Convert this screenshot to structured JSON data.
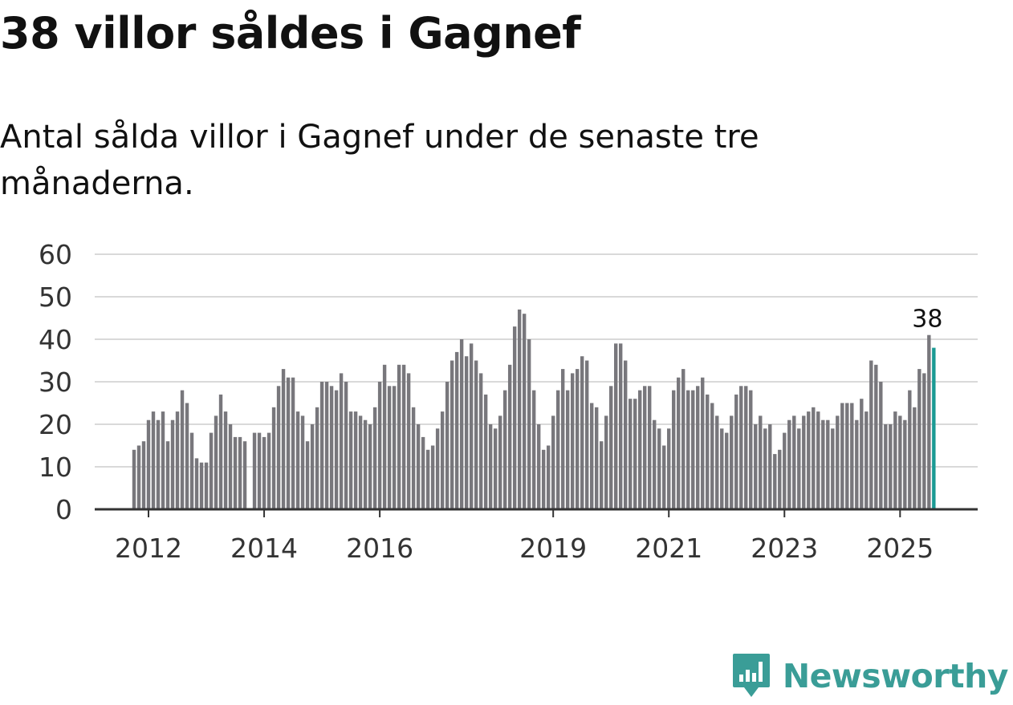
{
  "header": {
    "title": "38 villor såldes i Gagnef",
    "subtitle": "Antal sålda villor i Gagnef under de senaste tre månaderna."
  },
  "brand": {
    "name": "Newsworthy",
    "color": "#3a9d97"
  },
  "colors": {
    "bar": "#78777c",
    "highlight": "#1a9a94",
    "grid": "#d9d9d9",
    "axis": "#333333"
  },
  "chart_data": {
    "type": "bar",
    "title": "",
    "xlabel": "",
    "ylabel": "",
    "ylim": [
      0,
      60
    ],
    "yticks": [
      0,
      10,
      20,
      30,
      40,
      50,
      60
    ],
    "grid": true,
    "x_start": {
      "year": 2011,
      "month": 10
    },
    "xticks": [
      {
        "label": "2012",
        "year": 2012
      },
      {
        "label": "2014",
        "year": 2014
      },
      {
        "label": "2016",
        "year": 2016
      },
      {
        "label": "2019",
        "year": 2019
      },
      {
        "label": "2021",
        "year": 2021
      },
      {
        "label": "2023",
        "year": 2023
      },
      {
        "label": "2025",
        "year": 2025
      }
    ],
    "values": [
      14,
      15,
      16,
      21,
      23,
      21,
      23,
      16,
      21,
      23,
      28,
      25,
      18,
      12,
      11,
      11,
      18,
      22,
      27,
      23,
      20,
      17,
      17,
      16,
      null,
      18,
      18,
      17,
      18,
      24,
      29,
      33,
      31,
      31,
      23,
      22,
      16,
      20,
      24,
      30,
      30,
      29,
      28,
      32,
      30,
      23,
      23,
      22,
      21,
      20,
      24,
      30,
      34,
      29,
      29,
      34,
      34,
      32,
      24,
      20,
      17,
      14,
      15,
      19,
      23,
      30,
      35,
      37,
      40,
      36,
      39,
      35,
      32,
      27,
      20,
      19,
      22,
      28,
      34,
      43,
      47,
      46,
      40,
      28,
      20,
      14,
      15,
      22,
      28,
      33,
      28,
      32,
      33,
      36,
      35,
      25,
      24,
      16,
      22,
      29,
      39,
      39,
      35,
      26,
      26,
      28,
      29,
      29,
      21,
      19,
      15,
      19,
      28,
      31,
      33,
      28,
      28,
      29,
      31,
      27,
      25,
      22,
      19,
      18,
      22,
      27,
      29,
      29,
      28,
      20,
      22,
      19,
      20,
      13,
      14,
      18,
      21,
      22,
      19,
      22,
      23,
      24,
      23,
      21,
      21,
      19,
      22,
      25,
      25,
      25,
      21,
      26,
      23,
      35,
      34,
      30,
      20,
      20,
      23,
      22,
      21,
      28,
      24,
      33,
      32,
      41,
      38
    ],
    "highlight_last": true,
    "annotations": [
      {
        "label": "38",
        "target": "last"
      }
    ]
  }
}
